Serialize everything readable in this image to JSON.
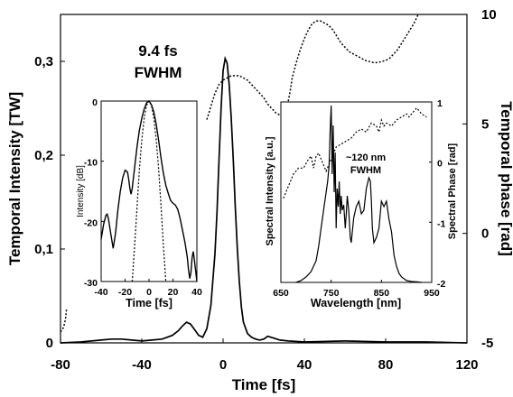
{
  "chart_data": [
    {
      "id": "main",
      "type": "line",
      "xlabel": "Time [fs]",
      "ylabel": "Temporal Intensity [TW]",
      "y2label": "Temporal phase [rad]",
      "xlim": [
        -80,
        120
      ],
      "ylim": [
        0,
        0.35
      ],
      "y2lim": [
        -5,
        10
      ],
      "xticks": [
        "-80",
        "-40",
        "0",
        "40",
        "80",
        "120"
      ],
      "yticks": [
        "0",
        "0,1",
        "0,2",
        "0,3"
      ],
      "y2ticks": [
        "-5",
        "0",
        "5",
        "10"
      ],
      "annotation": [
        "9.4 fs",
        "FWHM"
      ],
      "series": [
        {
          "role": "intensity",
          "axis": "left",
          "style": "solid",
          "x": [
            -80,
            -70,
            -60,
            -55,
            -50,
            -45,
            -40,
            -35,
            -30,
            -25,
            -22,
            -20,
            -18,
            -16,
            -14,
            -12,
            -10,
            -8,
            -6,
            -4,
            -3,
            -2,
            -1,
            0,
            1,
            2,
            3,
            4,
            5,
            6,
            7,
            8,
            9,
            10,
            12,
            14,
            16,
            18,
            20,
            22,
            25,
            28,
            32,
            40,
            60,
            80,
            100,
            120
          ],
          "y": [
            0,
            0.001,
            0.003,
            0.004,
            0.004,
            0.003,
            0.002,
            0.003,
            0.004,
            0.008,
            0.013,
            0.018,
            0.022,
            0.02,
            0.014,
            0.008,
            0.006,
            0.015,
            0.04,
            0.095,
            0.14,
            0.195,
            0.25,
            0.29,
            0.303,
            0.298,
            0.275,
            0.24,
            0.195,
            0.145,
            0.1,
            0.065,
            0.038,
            0.022,
            0.01,
            0.006,
            0.004,
            0.003,
            0.004,
            0.007,
            0.005,
            0.003,
            0.002,
            0.001,
            0.002,
            0.001,
            0.001,
            0
          ]
        },
        {
          "role": "phase",
          "axis": "right",
          "style": "dotted",
          "segments": [
            {
              "x": [
                -80,
                -78.5,
                -77.5,
                -77
              ],
              "y": [
                -4.5,
                -4.3,
                -3.9,
                -3.4
              ]
            },
            {
              "x": [
                -8,
                -7,
                -6,
                -5,
                -4,
                -3,
                -2,
                0,
                2,
                4,
                6,
                8,
                10,
                12,
                14,
                16,
                18,
                20,
                22,
                24,
                26,
                28,
                29,
                30,
                31,
                32,
                33,
                34,
                36,
                38,
                40,
                42,
                44,
                46,
                48,
                50,
                52,
                54,
                56,
                58,
                60,
                62,
                64,
                66,
                68,
                70,
                72,
                74,
                76,
                78,
                80,
                82,
                84,
                86,
                88,
                90,
                92,
                94,
                96
              ],
              "y": [
                5.2,
                5.5,
                5.8,
                6.1,
                6.4,
                6.6,
                6.8,
                7,
                7.1,
                7.2,
                7.2,
                7.2,
                7.1,
                7,
                6.8,
                6.6,
                6.4,
                6.2,
                5.9,
                5.7,
                5.5,
                5.4,
                5.35,
                5.4,
                5.6,
                6,
                6.5,
                7.1,
                7.8,
                8.4,
                8.9,
                9.3,
                9.6,
                9.7,
                9.7,
                9.6,
                9.5,
                9.3,
                9,
                8.7,
                8.5,
                8.3,
                8.2,
                8.1,
                8,
                7.9,
                7.85,
                7.8,
                7.8,
                7.85,
                7.9,
                8,
                8.2,
                8.4,
                8.7,
                9,
                9.3,
                9.6,
                10
              ]
            }
          ]
        }
      ]
    },
    {
      "id": "inset_left",
      "type": "line",
      "xlabel": "Time [fs]",
      "ylabel": "Intensity [dB]",
      "xlim": [
        -40,
        40
      ],
      "ylim": [
        -30,
        0
      ],
      "xticks": [
        "-40",
        "-20",
        "0",
        "20",
        "40"
      ],
      "yticks": [
        "0",
        "-10",
        "-20",
        "-30"
      ],
      "series": [
        {
          "role": "intensity_db",
          "style": "solid",
          "x": [
            -40,
            -38,
            -36,
            -35,
            -34,
            -32,
            -30,
            -28,
            -26,
            -24,
            -22,
            -20,
            -18,
            -17,
            -16,
            -15,
            -14,
            -12,
            -10,
            -8,
            -6,
            -4,
            -2,
            0,
            2,
            4,
            6,
            8,
            10,
            12,
            14,
            16,
            18,
            20,
            22,
            24,
            26,
            28,
            30,
            32,
            33,
            34,
            35,
            36,
            37,
            38,
            40
          ],
          "y": [
            -23,
            -20.5,
            -19,
            -18.8,
            -19.5,
            -22,
            -24.5,
            -22,
            -18,
            -15,
            -12.8,
            -11.5,
            -11.8,
            -13,
            -14.5,
            -15.5,
            -14.5,
            -11,
            -7.5,
            -4.8,
            -2.8,
            -1.3,
            -0.3,
            0,
            -0.6,
            -1.8,
            -3.8,
            -6.5,
            -9.5,
            -12,
            -14,
            -15.3,
            -16.5,
            -17,
            -17.3,
            -18,
            -19.5,
            -21.5,
            -23.5,
            -26,
            -28,
            -29.5,
            -28.5,
            -26,
            -25,
            -26.5,
            -30
          ]
        },
        {
          "role": "gaussian_ref",
          "style": "dotted",
          "x": [
            -14,
            -12,
            -10,
            -8,
            -6,
            -4,
            -2,
            0,
            2,
            4,
            6,
            8,
            10,
            12,
            14
          ],
          "y": [
            -30,
            -24,
            -17.5,
            -11.2,
            -6.3,
            -2.8,
            -0.7,
            0,
            -0.7,
            -2.8,
            -6.3,
            -11.2,
            -17.5,
            -24,
            -30
          ]
        }
      ]
    },
    {
      "id": "inset_right",
      "type": "line",
      "xlabel": "Wavelength [nm]",
      "ylabel": "Spectral Intensity [a.u.]",
      "y2label": "Spectral Phase [rad]",
      "xlim": [
        650,
        950
      ],
      "ylim": [
        0,
        1
      ],
      "y2lim": [
        -2,
        1
      ],
      "xticks": [
        "650",
        "750",
        "850",
        "950"
      ],
      "y2ticks": [
        "1",
        "0",
        "-1",
        "-2"
      ],
      "annotation": [
        "~120 nm",
        "FWHM"
      ],
      "series": [
        {
          "role": "spectrum",
          "axis": "left",
          "style": "solid",
          "x": [
            680,
            690,
            700,
            710,
            720,
            725,
            730,
            735,
            740,
            743,
            746,
            748,
            750,
            752,
            754,
            756,
            758,
            760,
            762,
            764,
            766,
            768,
            770,
            772,
            775,
            778,
            780,
            782,
            785,
            788,
            790,
            795,
            800,
            805,
            810,
            815,
            820,
            825,
            828,
            830,
            832,
            835,
            840,
            845,
            850,
            855,
            860,
            865,
            870,
            875,
            880,
            885,
            890,
            900,
            910,
            920,
            930
          ],
          "y": [
            0,
            0.01,
            0.03,
            0.06,
            0.12,
            0.2,
            0.3,
            0.4,
            0.5,
            0.56,
            0.65,
            0.85,
            0.98,
            0.6,
            0.87,
            0.5,
            0.72,
            0.3,
            0.52,
            0.42,
            0.56,
            0.38,
            0.48,
            0.4,
            0.43,
            0.3,
            0.38,
            0.48,
            0.4,
            0.25,
            0.22,
            0.36,
            0.42,
            0.45,
            0.38,
            0.4,
            0.52,
            0.58,
            0.56,
            0.45,
            0.3,
            0.22,
            0.25,
            0.3,
            0.45,
            0.42,
            0.45,
            0.35,
            0.28,
            0.15,
            0.09,
            0.05,
            0.03,
            0.01,
            0.005,
            0.003,
            0
          ]
        },
        {
          "role": "spectral_phase",
          "axis": "right",
          "style": "dotted",
          "x": [
            655,
            665,
            675,
            685,
            695,
            705,
            710,
            715,
            720,
            725,
            730,
            740,
            750,
            760,
            770,
            780,
            790,
            800,
            810,
            820,
            830,
            840,
            845,
            850,
            855,
            860,
            870,
            880,
            890,
            900,
            905,
            910,
            915,
            920,
            925,
            930,
            940
          ],
          "y": [
            -0.6,
            -0.4,
            -0.2,
            -0.1,
            -0.1,
            0.05,
            0.1,
            -0.1,
            0.1,
            0.15,
            0.05,
            -0.15,
            0.05,
            0.25,
            0.3,
            0.35,
            0.4,
            0.5,
            0.55,
            0.5,
            0.65,
            0.6,
            0.5,
            0.7,
            0.6,
            0.65,
            0.6,
            0.7,
            0.75,
            0.8,
            0.75,
            0.8,
            0.85,
            0.9,
            0.85,
            0.8,
            0.75
          ]
        }
      ]
    }
  ]
}
